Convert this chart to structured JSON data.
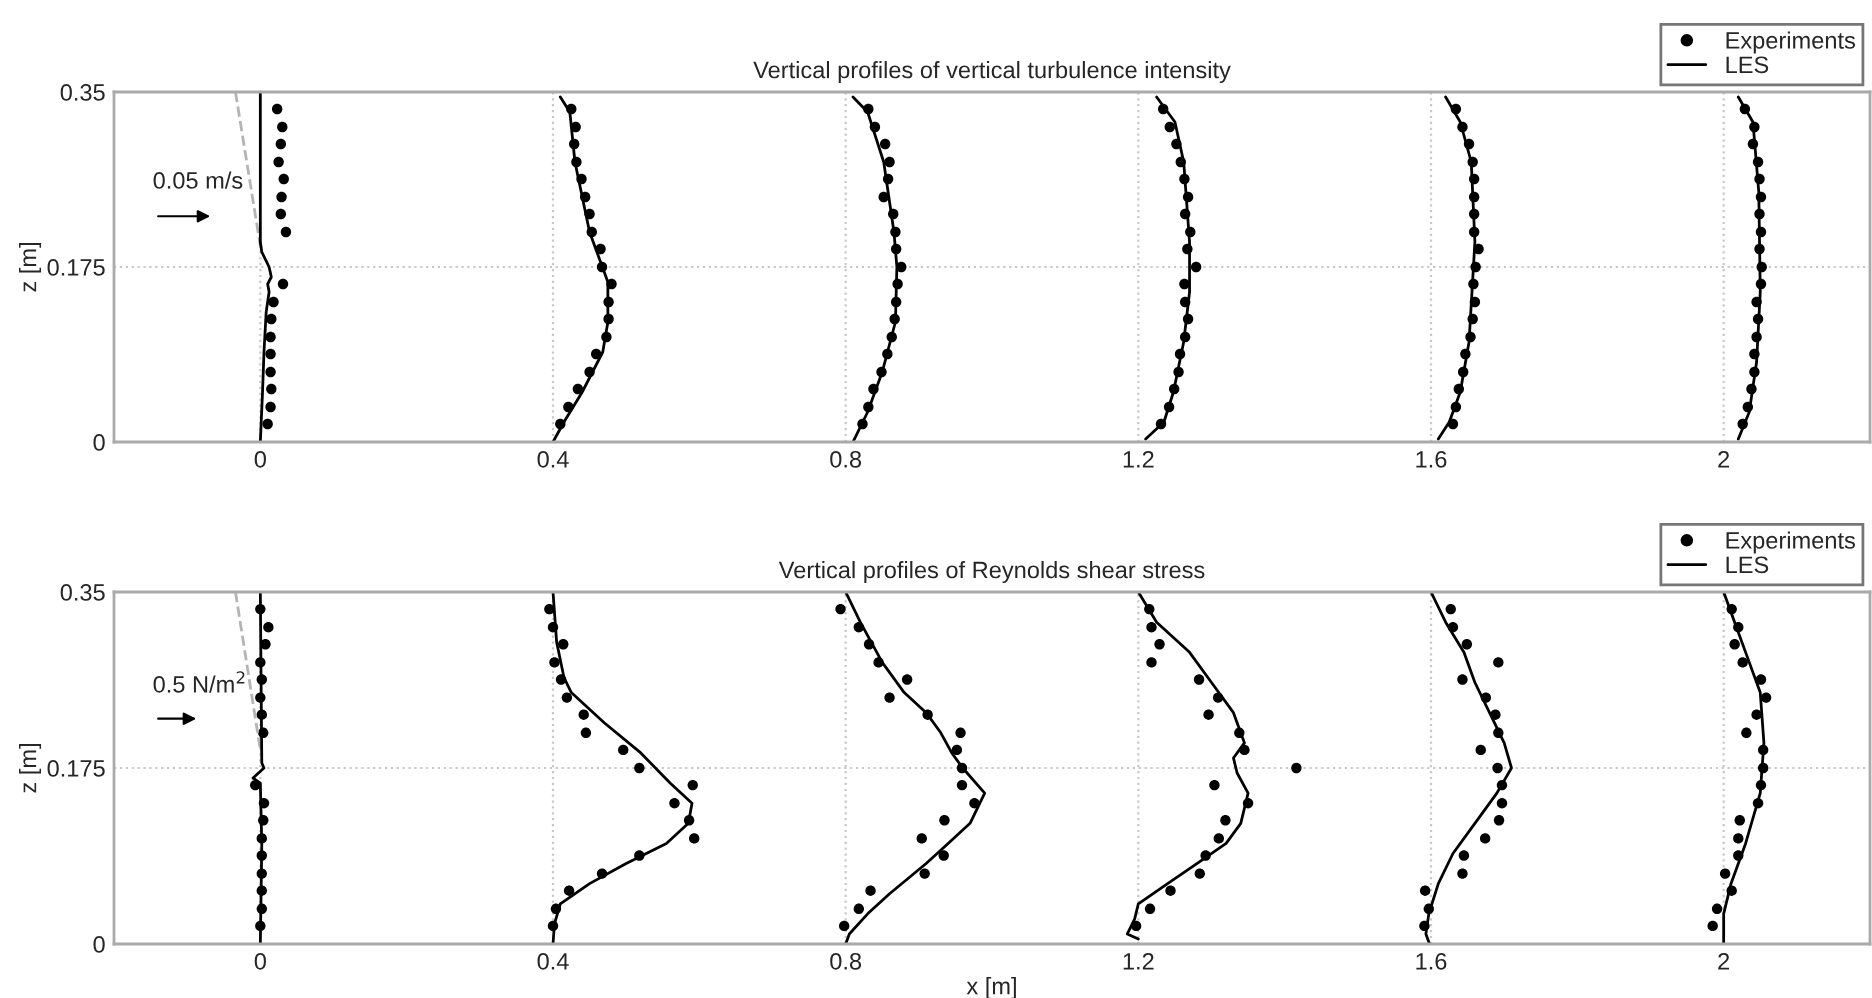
{
  "chart_data": [
    {
      "type": "scatter",
      "title": "Vertical profiles of vertical turbulence intensity",
      "ylabel": "z [m]",
      "xlim": [
        -0.2,
        2.2
      ],
      "ylim": [
        0,
        0.35
      ],
      "xticks": [
        0,
        0.4,
        0.8,
        1.2,
        1.6,
        2
      ],
      "yticks": [
        0,
        0.175,
        0.35
      ],
      "grid": true,
      "legend": "top right",
      "annotations": [
        "0.05 m/s"
      ],
      "series": [
        {
          "type": "line",
          "color": "#b4b4b4",
          "line_style": "dashed",
          "x": [
            -0.034,
            0.0
          ],
          "values": [
            0.35,
            0.196
          ]
        },
        {
          "name": "Experiments",
          "marker": "circle",
          "color": "#000000",
          "x": [
            0.023,
            0.03,
            0.028,
            0.025,
            0.032,
            0.029,
            0.028,
            0.035,
            0.031,
            0.018,
            0.015,
            0.014,
            0.014,
            0.014,
            0.015,
            0.014,
            0.01,
            0.425,
            0.431,
            0.429,
            0.432,
            0.439,
            0.444,
            0.45,
            0.453,
            0.465,
            0.467,
            0.48,
            0.476,
            0.476,
            0.473,
            0.459,
            0.45,
            0.434,
            0.421,
            0.41,
            0.831,
            0.84,
            0.854,
            0.86,
            0.858,
            0.852,
            0.865,
            0.868,
            0.869,
            0.876,
            0.871,
            0.869,
            0.867,
            0.863,
            0.857,
            0.849,
            0.838,
            0.831,
            0.823,
            1.234,
            1.243,
            1.252,
            1.258,
            1.263,
            1.268,
            1.264,
            1.271,
            1.267,
            1.279,
            1.263,
            1.264,
            1.268,
            1.264,
            1.257,
            1.255,
            1.249,
            1.242,
            1.231,
            1.634,
            1.643,
            1.652,
            1.657,
            1.659,
            1.659,
            1.659,
            1.659,
            1.665,
            1.661,
            1.658,
            1.66,
            1.657,
            1.654,
            1.647,
            1.644,
            1.638,
            1.634,
            1.63,
            2.029,
            2.042,
            2.04,
            2.047,
            2.049,
            2.051,
            2.049,
            2.051,
            2.049,
            2.052,
            2.051,
            2.045,
            2.047,
            2.045,
            2.042,
            2.042,
            2.038,
            2.033,
            2.026
          ],
          "values": [
            0.333,
            0.315,
            0.298,
            0.28,
            0.263,
            0.245,
            0.228,
            0.21,
            0.158,
            0.14,
            0.123,
            0.105,
            0.088,
            0.07,
            0.053,
            0.035,
            0.018,
            0.333,
            0.315,
            0.298,
            0.28,
            0.263,
            0.245,
            0.228,
            0.21,
            0.193,
            0.175,
            0.158,
            0.14,
            0.123,
            0.105,
            0.088,
            0.07,
            0.053,
            0.035,
            0.018,
            0.333,
            0.315,
            0.298,
            0.28,
            0.263,
            0.245,
            0.228,
            0.21,
            0.193,
            0.175,
            0.158,
            0.14,
            0.123,
            0.105,
            0.088,
            0.07,
            0.053,
            0.035,
            0.018,
            0.333,
            0.315,
            0.298,
            0.28,
            0.263,
            0.245,
            0.228,
            0.21,
            0.193,
            0.175,
            0.158,
            0.14,
            0.123,
            0.105,
            0.088,
            0.07,
            0.053,
            0.035,
            0.018,
            0.333,
            0.315,
            0.298,
            0.28,
            0.263,
            0.245,
            0.228,
            0.21,
            0.193,
            0.175,
            0.158,
            0.14,
            0.123,
            0.105,
            0.088,
            0.07,
            0.053,
            0.035,
            0.018,
            0.333,
            0.315,
            0.298,
            0.28,
            0.263,
            0.245,
            0.228,
            0.21,
            0.193,
            0.175,
            0.158,
            0.14,
            0.123,
            0.105,
            0.088,
            0.07,
            0.053,
            0.035,
            0.018
          ]
        },
        {
          "name": "LES",
          "type": "line",
          "line_style": "solid",
          "color": "#000000",
          "x": [
            0.0,
            0.0,
            0.002,
            0.012,
            0.015,
            0.01,
            0.012,
            0.008,
            0.005,
            0.003,
            0.0,
            null,
            0.41,
            0.423,
            0.43,
            0.45,
            0.475,
            0.475,
            0.468,
            0.44,
            0.415,
            0.4,
            null,
            0.81,
            0.83,
            0.852,
            0.866,
            0.87,
            0.868,
            0.85,
            0.83,
            0.81,
            null,
            1.225,
            1.25,
            1.262,
            1.27,
            1.27,
            1.262,
            1.248,
            1.235,
            1.21,
            null,
            1.62,
            1.64,
            1.655,
            1.66,
            1.652,
            1.64,
            1.625,
            1.61,
            null,
            2.02,
            2.04,
            2.048,
            2.05,
            2.045,
            2.035,
            2.02
          ],
          "values": [
            0.35,
            0.2,
            0.19,
            0.175,
            0.165,
            0.158,
            0.15,
            0.13,
            0.09,
            0.05,
            0.0,
            null,
            0.345,
            0.33,
            0.28,
            0.21,
            0.16,
            0.12,
            0.09,
            0.05,
            0.02,
            0.0,
            null,
            0.345,
            0.33,
            0.28,
            0.21,
            0.175,
            0.12,
            0.07,
            0.03,
            0.0,
            null,
            0.345,
            0.32,
            0.28,
            0.2,
            0.15,
            0.1,
            0.05,
            0.02,
            0.003,
            null,
            0.345,
            0.32,
            0.28,
            0.2,
            0.1,
            0.05,
            0.02,
            0.003,
            null,
            0.345,
            0.32,
            0.25,
            0.15,
            0.08,
            0.03,
            0.003
          ]
        }
      ]
    },
    {
      "type": "scatter",
      "title": "Vertical profiles of Reynolds shear stress",
      "xlabel": "x [m]",
      "ylabel": "z [m]",
      "xlim": [
        -0.2,
        2.2
      ],
      "ylim": [
        0,
        0.35
      ],
      "xticks": [
        0,
        0.4,
        0.8,
        1.2,
        1.6,
        2
      ],
      "yticks": [
        0,
        0.175,
        0.35
      ],
      "grid": true,
      "legend": "top right",
      "annotations": [
        "0.5 N/m$^{2}$"
      ],
      "series": [
        {
          "type": "line",
          "color": "#b4b4b4",
          "line_style": "dashed",
          "x": [
            -0.034,
            0.0
          ],
          "values": [
            0.35,
            0.193
          ]
        },
        {
          "name": "Experiments",
          "marker": "circle",
          "color": "#000000",
          "x": [
            0.0,
            0.011,
            0.007,
            0.0,
            0.002,
            0.0,
            0.002,
            0.004,
            -0.007,
            0.005,
            0.004,
            0.002,
            0.002,
            0.002,
            0.002,
            0.002,
            0.0,
            0.395,
            0.4,
            0.414,
            0.402,
            0.411,
            0.419,
            0.442,
            0.445,
            0.496,
            0.518,
            0.591,
            0.566,
            0.586,
            0.593,
            0.518,
            0.467,
            0.422,
            0.404,
            0.4,
            0.793,
            0.818,
            0.832,
            0.845,
            0.884,
            0.86,
            0.912,
            0.957,
            0.952,
            0.959,
            0.959,
            0.976,
            0.935,
            0.904,
            0.934,
            0.908,
            0.834,
            0.818,
            0.798,
            1.215,
            1.218,
            1.229,
            1.218,
            1.283,
            1.309,
            1.296,
            1.338,
            1.345,
            1.416,
            1.304,
            1.35,
            1.319,
            1.31,
            1.292,
            1.284,
            1.244,
            1.216,
            1.197,
            1.627,
            1.63,
            1.649,
            1.692,
            1.643,
            1.675,
            1.688,
            1.692,
            1.668,
            1.691,
            1.697,
            1.697,
            1.693,
            1.674,
            1.645,
            1.643,
            1.592,
            1.597,
            1.591,
            2.011,
            2.02,
            2.015,
            2.026,
            2.051,
            2.058,
            2.045,
            2.031,
            2.054,
            2.054,
            2.051,
            2.047,
            2.022,
            2.02,
            2.02,
            2.002,
            2.011,
            1.991,
            1.985
          ],
          "values": [
            0.333,
            0.315,
            0.298,
            0.28,
            0.263,
            0.245,
            0.228,
            0.21,
            0.158,
            0.14,
            0.123,
            0.105,
            0.088,
            0.07,
            0.053,
            0.035,
            0.018,
            0.333,
            0.315,
            0.298,
            0.28,
            0.263,
            0.245,
            0.228,
            0.21,
            0.193,
            0.175,
            0.158,
            0.14,
            0.123,
            0.105,
            0.088,
            0.07,
            0.053,
            0.035,
            0.018,
            0.333,
            0.315,
            0.298,
            0.28,
            0.263,
            0.245,
            0.228,
            0.21,
            0.193,
            0.175,
            0.158,
            0.14,
            0.123,
            0.105,
            0.088,
            0.07,
            0.053,
            0.035,
            0.018,
            0.333,
            0.315,
            0.298,
            0.28,
            0.263,
            0.245,
            0.228,
            0.21,
            0.193,
            0.175,
            0.158,
            0.14,
            0.123,
            0.105,
            0.088,
            0.07,
            0.053,
            0.035,
            0.018,
            0.333,
            0.315,
            0.298,
            0.28,
            0.263,
            0.245,
            0.228,
            0.21,
            0.193,
            0.175,
            0.158,
            0.14,
            0.123,
            0.105,
            0.088,
            0.07,
            0.053,
            0.035,
            0.018,
            0.333,
            0.315,
            0.298,
            0.28,
            0.263,
            0.245,
            0.228,
            0.21,
            0.193,
            0.175,
            0.158,
            0.14,
            0.123,
            0.105,
            0.088,
            0.07,
            0.053,
            0.035,
            0.018
          ]
        },
        {
          "name": "LES",
          "type": "line",
          "line_style": "solid",
          "color": "#000000",
          "x": [
            0.0,
            0.002,
            0.005,
            -0.01,
            0.0,
            0.002,
            0.0,
            null,
            0.4,
            0.405,
            0.415,
            0.425,
            0.47,
            0.52,
            0.56,
            0.59,
            0.585,
            0.555,
            0.5,
            0.45,
            0.41,
            0.402,
            0.4,
            null,
            0.8,
            0.82,
            0.85,
            0.88,
            0.91,
            0.93,
            0.945,
            0.96,
            0.99,
            0.97,
            0.94,
            0.91,
            0.86,
            0.83,
            0.805,
            0.8,
            null,
            1.2,
            1.225,
            1.27,
            1.3,
            1.33,
            1.345,
            1.33,
            1.335,
            1.35,
            1.34,
            1.32,
            1.28,
            1.24,
            1.2,
            1.195,
            1.185,
            1.2,
            null,
            1.6,
            1.62,
            1.645,
            1.66,
            1.68,
            1.7,
            1.71,
            1.69,
            1.66,
            1.63,
            1.61,
            1.597,
            1.593,
            1.598,
            null,
            2.0,
            2.015,
            2.035,
            2.05,
            2.055,
            2.05,
            2.03,
            2.01,
            2.0,
            2.0
          ],
          "values": [
            0.35,
            0.18,
            0.175,
            0.165,
            0.16,
            0.1,
            0.0,
            null,
            0.35,
            0.3,
            0.265,
            0.25,
            0.22,
            0.19,
            0.16,
            0.14,
            0.12,
            0.1,
            0.08,
            0.06,
            0.04,
            0.02,
            0.0,
            null,
            0.35,
            0.32,
            0.28,
            0.25,
            0.23,
            0.21,
            0.19,
            0.175,
            0.15,
            0.12,
            0.1,
            0.08,
            0.05,
            0.03,
            0.01,
            0.0,
            null,
            0.35,
            0.32,
            0.29,
            0.26,
            0.23,
            0.2,
            0.185,
            0.17,
            0.15,
            0.12,
            0.1,
            0.08,
            0.06,
            0.04,
            0.025,
            0.01,
            0.005,
            null,
            0.35,
            0.32,
            0.29,
            0.26,
            0.23,
            0.2,
            0.175,
            0.15,
            0.12,
            0.09,
            0.06,
            0.03,
            0.01,
            0.0,
            null,
            0.35,
            0.32,
            0.28,
            0.25,
            0.2,
            0.15,
            0.1,
            0.06,
            0.03,
            0.0
          ]
        }
      ]
    }
  ]
}
